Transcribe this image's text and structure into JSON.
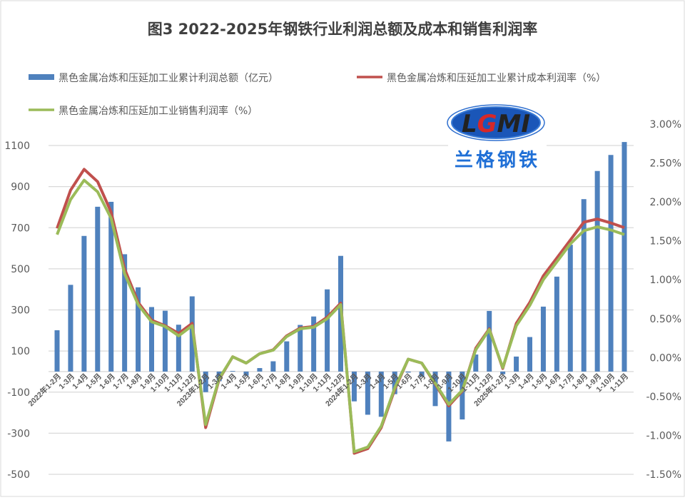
{
  "chart_data": {
    "type": "bar+line",
    "title": "图3 2022-2025年钢铁行业利润总额及成本和销售利润率",
    "categories": [
      "2022年1-2月",
      "1-3月",
      "1-4月",
      "1-5月",
      "1-6月",
      "1-7月",
      "1-8月",
      "1-9月",
      "1-10月",
      "1-11月",
      "1-12月",
      "2023年1-2月",
      "1-3月",
      "1-4月",
      "1-5月",
      "1-6月",
      "1-7月",
      "1-8月",
      "1-9月",
      "1-10月",
      "1-11月",
      "1-12月",
      "2024年1-2月",
      "1-3月",
      "1-4月",
      "1-5月",
      "1-6月",
      "1-7月",
      "1-8月",
      "1-9月",
      "1-10月",
      "1-11月",
      "1-12月",
      "2025年1-2月",
      "1-3月",
      "1-4月",
      "1-5月",
      "1-6月",
      "1-7月",
      "1-8月",
      "1-9月",
      "1-10月",
      "1-11月"
    ],
    "left_axis": {
      "ylim": [
        -500,
        1100
      ],
      "ticks": [
        "1100",
        "900",
        "700",
        "500",
        "300",
        "100",
        "-100",
        "-300",
        "-500"
      ]
    },
    "right_axis": {
      "ylim": [
        -1.5,
        3.0
      ],
      "ticks": [
        "3.00%",
        "2.50%",
        "2.00%",
        "1.50%",
        "1.00%",
        "0.50%",
        "0.00%",
        "-0.50%",
        "-1.00%",
        "-1.50%"
      ]
    },
    "grid": true,
    "legend_position": "top",
    "series": [
      {
        "name": "黑色金属冶炼和压延加工业累计利润总额（亿元）",
        "type": "bar",
        "axis": "left",
        "color": "#4F81BD",
        "values": [
          201,
          422,
          660,
          802,
          826,
          571,
          410,
          314,
          296,
          228,
          366,
          -100,
          -47,
          3,
          -20,
          17,
          50,
          147,
          227,
          268,
          400,
          563,
          -145,
          -210,
          -220,
          -110,
          -5,
          -25,
          -168,
          -340,
          -233,
          83,
          295,
          -13,
          73,
          168,
          316,
          462,
          617,
          839,
          976,
          1054,
          1117
        ]
      },
      {
        "name": "黑色金属冶炼和压延加工业累计成本利润率（%）",
        "type": "line",
        "axis": "right",
        "color": "#C0504D",
        "values": [
          1.66,
          2.15,
          2.42,
          2.26,
          1.87,
          1.14,
          0.71,
          0.48,
          0.41,
          0.31,
          0.44,
          -0.9,
          -0.28,
          0.01,
          -0.07,
          0.05,
          0.1,
          0.28,
          0.38,
          0.4,
          0.52,
          0.7,
          -1.23,
          -1.17,
          -0.9,
          -0.41,
          -0.02,
          -0.07,
          -0.34,
          -0.62,
          -0.43,
          0.12,
          0.37,
          -0.14,
          0.44,
          0.71,
          1.05,
          1.28,
          1.51,
          1.74,
          1.78,
          1.73,
          1.67
        ]
      },
      {
        "name": "黑色金属冶炼和压延加工业销售利润率（%）",
        "type": "line",
        "axis": "right",
        "color": "#9BBB59",
        "values": [
          1.58,
          2.03,
          2.28,
          2.13,
          1.79,
          1.08,
          0.68,
          0.46,
          0.4,
          0.28,
          0.41,
          -0.86,
          -0.27,
          0.01,
          -0.07,
          0.05,
          0.095,
          0.27,
          0.37,
          0.39,
          0.5,
          0.68,
          -1.21,
          -1.15,
          -0.88,
          -0.39,
          -0.02,
          -0.07,
          -0.33,
          -0.6,
          -0.42,
          0.1,
          0.36,
          -0.13,
          0.41,
          0.67,
          1.0,
          1.23,
          1.46,
          1.63,
          1.68,
          1.64,
          1.58
        ]
      }
    ]
  },
  "logo": {
    "text": "LGMI",
    "subtitle": "兰格钢铁"
  }
}
